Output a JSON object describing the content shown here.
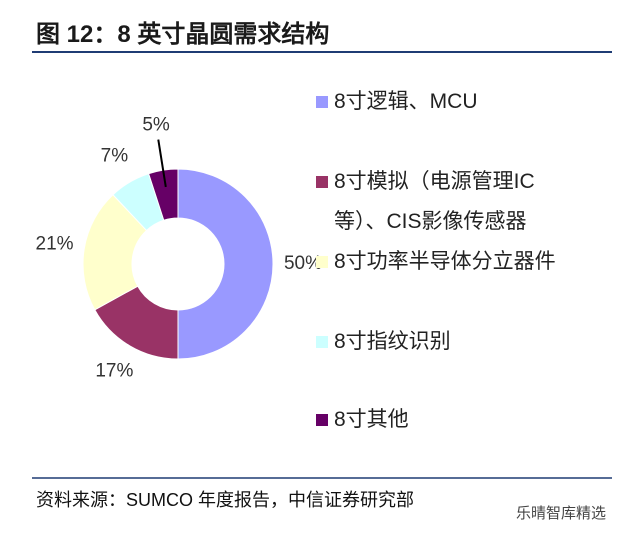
{
  "chart_data": {
    "type": "donut",
    "title": "图 12：8 英寸晶圆需求结构",
    "categories": [
      "8寸逻辑、MCU",
      "8寸模拟（电源管理IC等）、CIS影像传感器",
      "8寸功率半导体分立器件",
      "8寸指纹识别",
      "8寸其他"
    ],
    "values": [
      50,
      17,
      21,
      7,
      5
    ],
    "value_labels": [
      "50%",
      "17%",
      "21%",
      "7%",
      "5%"
    ],
    "colors": [
      "#9999ff",
      "#993366",
      "#ffffcc",
      "#ccffff",
      "#660066"
    ],
    "legend": "right",
    "source": "资料来源：SUMCO 年度报告，中信证券研究部",
    "watermark": "乐晴智库精选"
  }
}
